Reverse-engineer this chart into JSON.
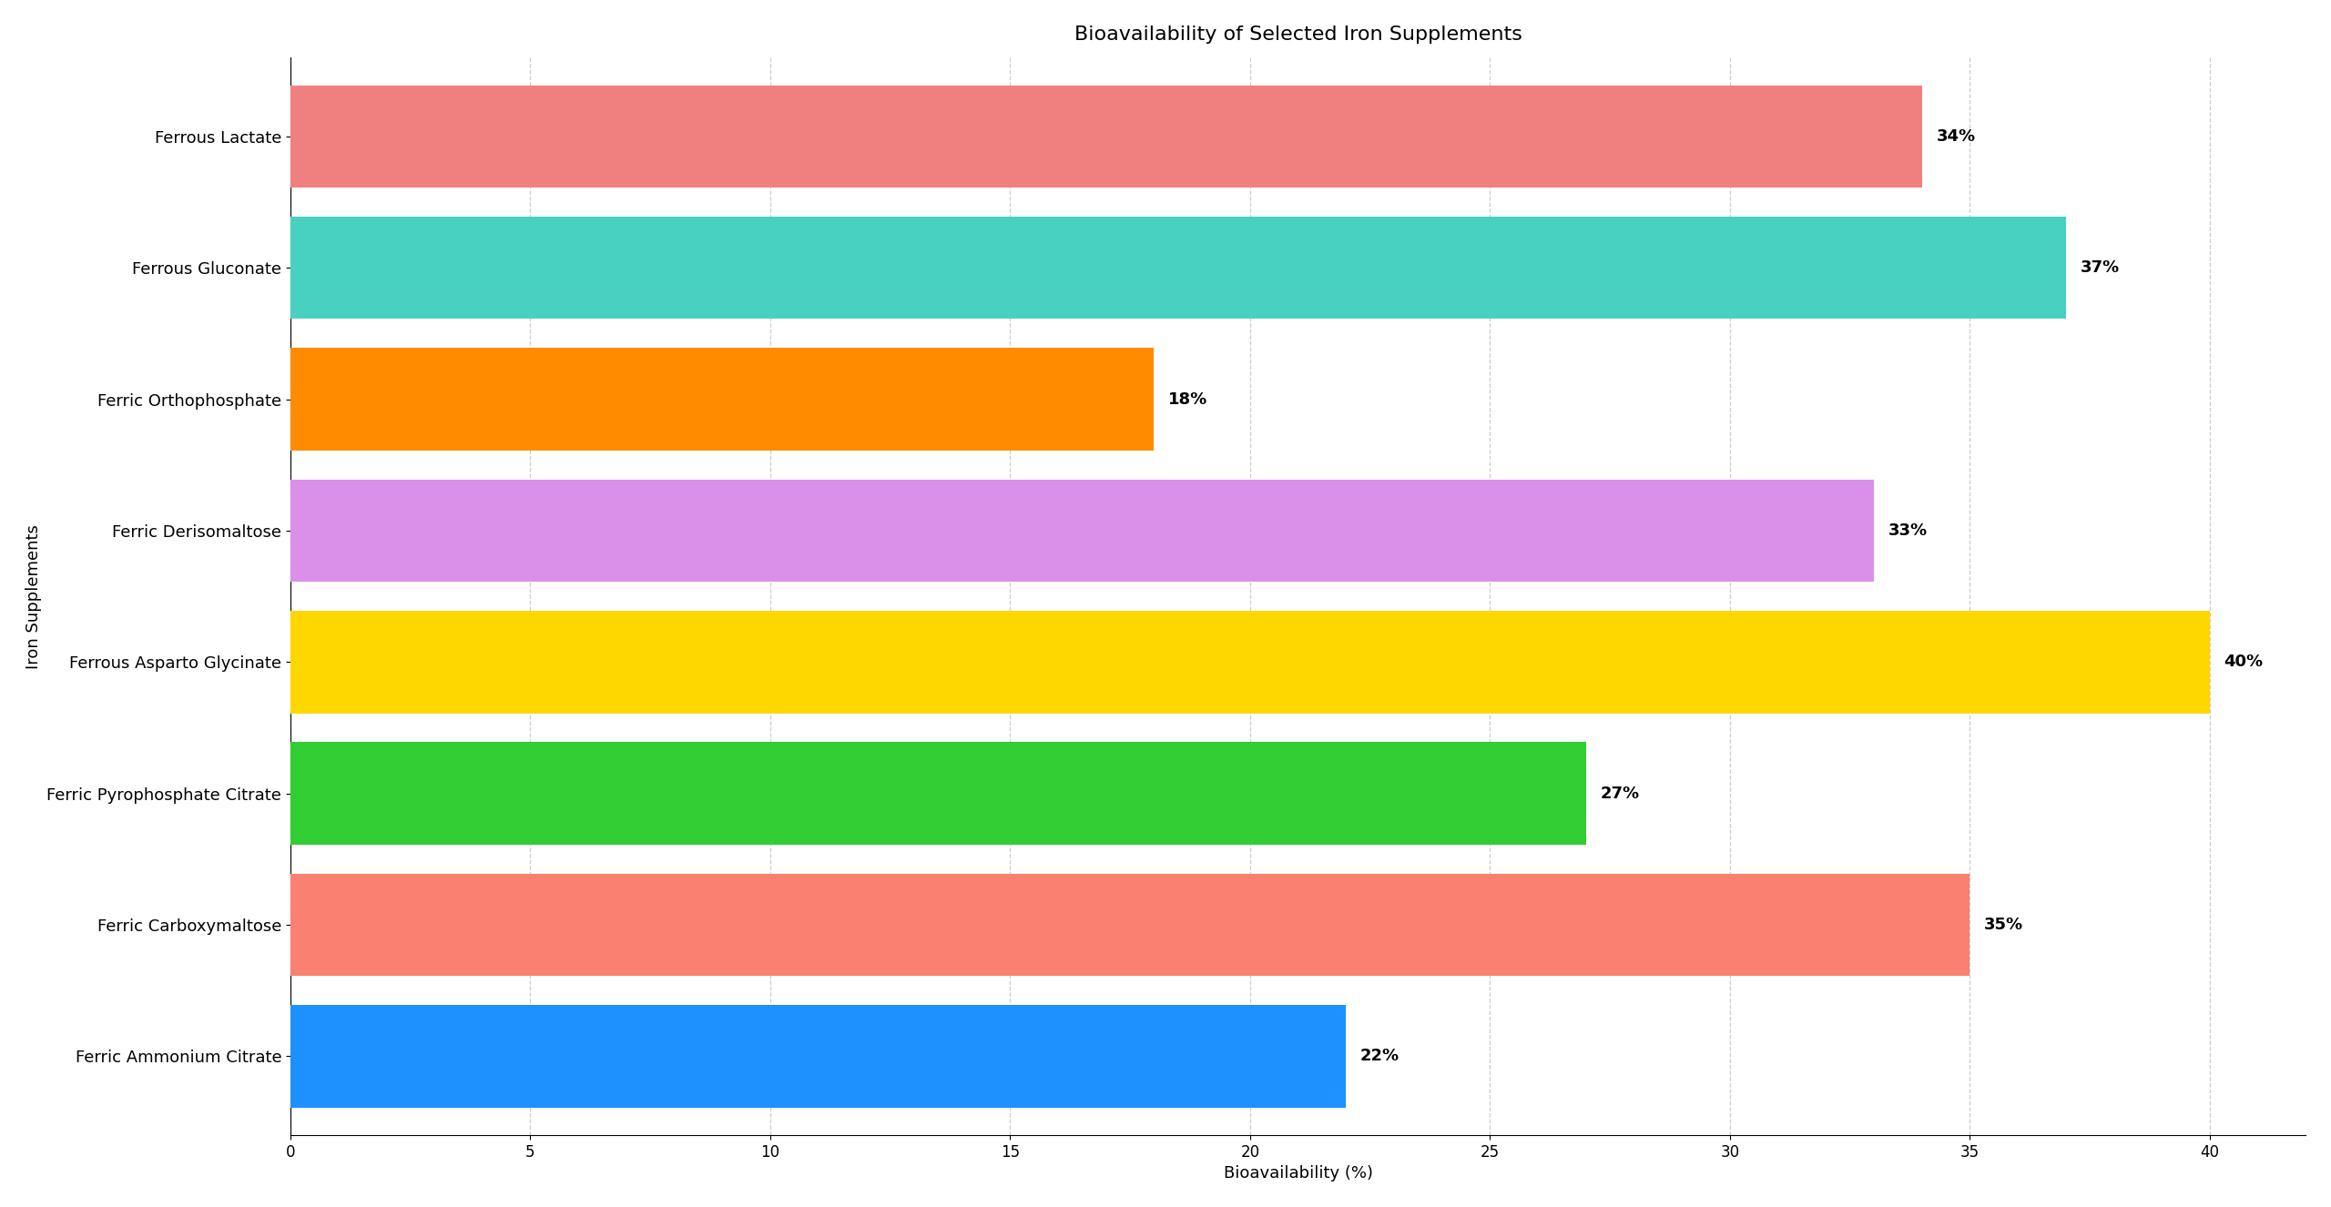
{
  "title": "Bioavailability of Selected Iron Supplements",
  "xlabel": "Bioavailability (%)",
  "ylabel": "Iron Supplements",
  "categories": [
    "Ferric Ammonium Citrate",
    "Ferric Carboxymaltose",
    "Ferric Pyrophosphate Citrate",
    "Ferrous Asparto Glycinate",
    "Ferric Derisomaltose",
    "Ferric Orthophosphate",
    "Ferrous Gluconate",
    "Ferrous Lactate"
  ],
  "values": [
    22,
    35,
    27,
    40,
    33,
    18,
    37,
    34
  ],
  "bar_colors": [
    "#1E90FF",
    "#FA8072",
    "#32CD32",
    "#FFD700",
    "#DA90E8",
    "#FF8C00",
    "#48D1C0",
    "#F08080"
  ],
  "xlim": [
    0,
    42
  ],
  "xticks": [
    0,
    5,
    10,
    15,
    20,
    25,
    30,
    35,
    40
  ],
  "background_color": "#FFFFFF",
  "grid_color": "#CCCCCC",
  "title_fontsize": 16,
  "label_fontsize": 13,
  "tick_fontsize": 12,
  "bar_height": 0.78
}
